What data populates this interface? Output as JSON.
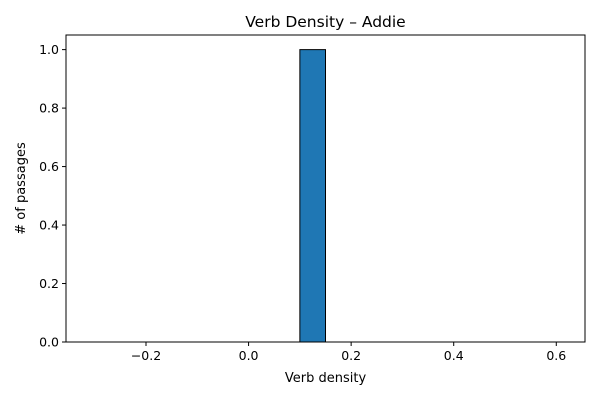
{
  "chart_data": {
    "type": "bar",
    "title": "Verb Density – Addie",
    "xlabel": "Verb density",
    "ylabel": "# of passages",
    "xlim": [
      -0.356,
      0.656
    ],
    "ylim": [
      0,
      1.05
    ],
    "xticks": [
      -0.2,
      0.0,
      0.2,
      0.4,
      0.6
    ],
    "xtick_labels": [
      "−0.2",
      "0.0",
      "0.2",
      "0.4",
      "0.6"
    ],
    "yticks": [
      0.0,
      0.2,
      0.4,
      0.6,
      0.8,
      1.0
    ],
    "ytick_labels": [
      "0.0",
      "0.2",
      "0.4",
      "0.6",
      "0.8",
      "1.0"
    ],
    "bins": [
      {
        "start": -0.35,
        "end": -0.3,
        "count": 0
      },
      {
        "start": -0.3,
        "end": -0.25,
        "count": 0
      },
      {
        "start": -0.25,
        "end": -0.2,
        "count": 0
      },
      {
        "start": -0.2,
        "end": -0.15,
        "count": 0
      },
      {
        "start": -0.15,
        "end": -0.1,
        "count": 0
      },
      {
        "start": -0.1,
        "end": -0.05,
        "count": 0
      },
      {
        "start": -0.05,
        "end": 0.0,
        "count": 0
      },
      {
        "start": 0.0,
        "end": 0.05,
        "count": 0
      },
      {
        "start": 0.05,
        "end": 0.1,
        "count": 0
      },
      {
        "start": 0.1,
        "end": 0.15,
        "count": 1
      },
      {
        "start": 0.15,
        "end": 0.2,
        "count": 0
      },
      {
        "start": 0.2,
        "end": 0.25,
        "count": 0
      },
      {
        "start": 0.25,
        "end": 0.3,
        "count": 0
      },
      {
        "start": 0.3,
        "end": 0.35,
        "count": 0
      },
      {
        "start": 0.35,
        "end": 0.4,
        "count": 0
      },
      {
        "start": 0.4,
        "end": 0.45,
        "count": 0
      },
      {
        "start": 0.45,
        "end": 0.5,
        "count": 0
      },
      {
        "start": 0.5,
        "end": 0.55,
        "count": 0
      },
      {
        "start": 0.55,
        "end": 0.6,
        "count": 0
      },
      {
        "start": 0.6,
        "end": 0.65,
        "count": 0
      }
    ],
    "bar_color": "#1f77b4",
    "edge_color": "#000000",
    "grid": false,
    "legend": "none"
  }
}
